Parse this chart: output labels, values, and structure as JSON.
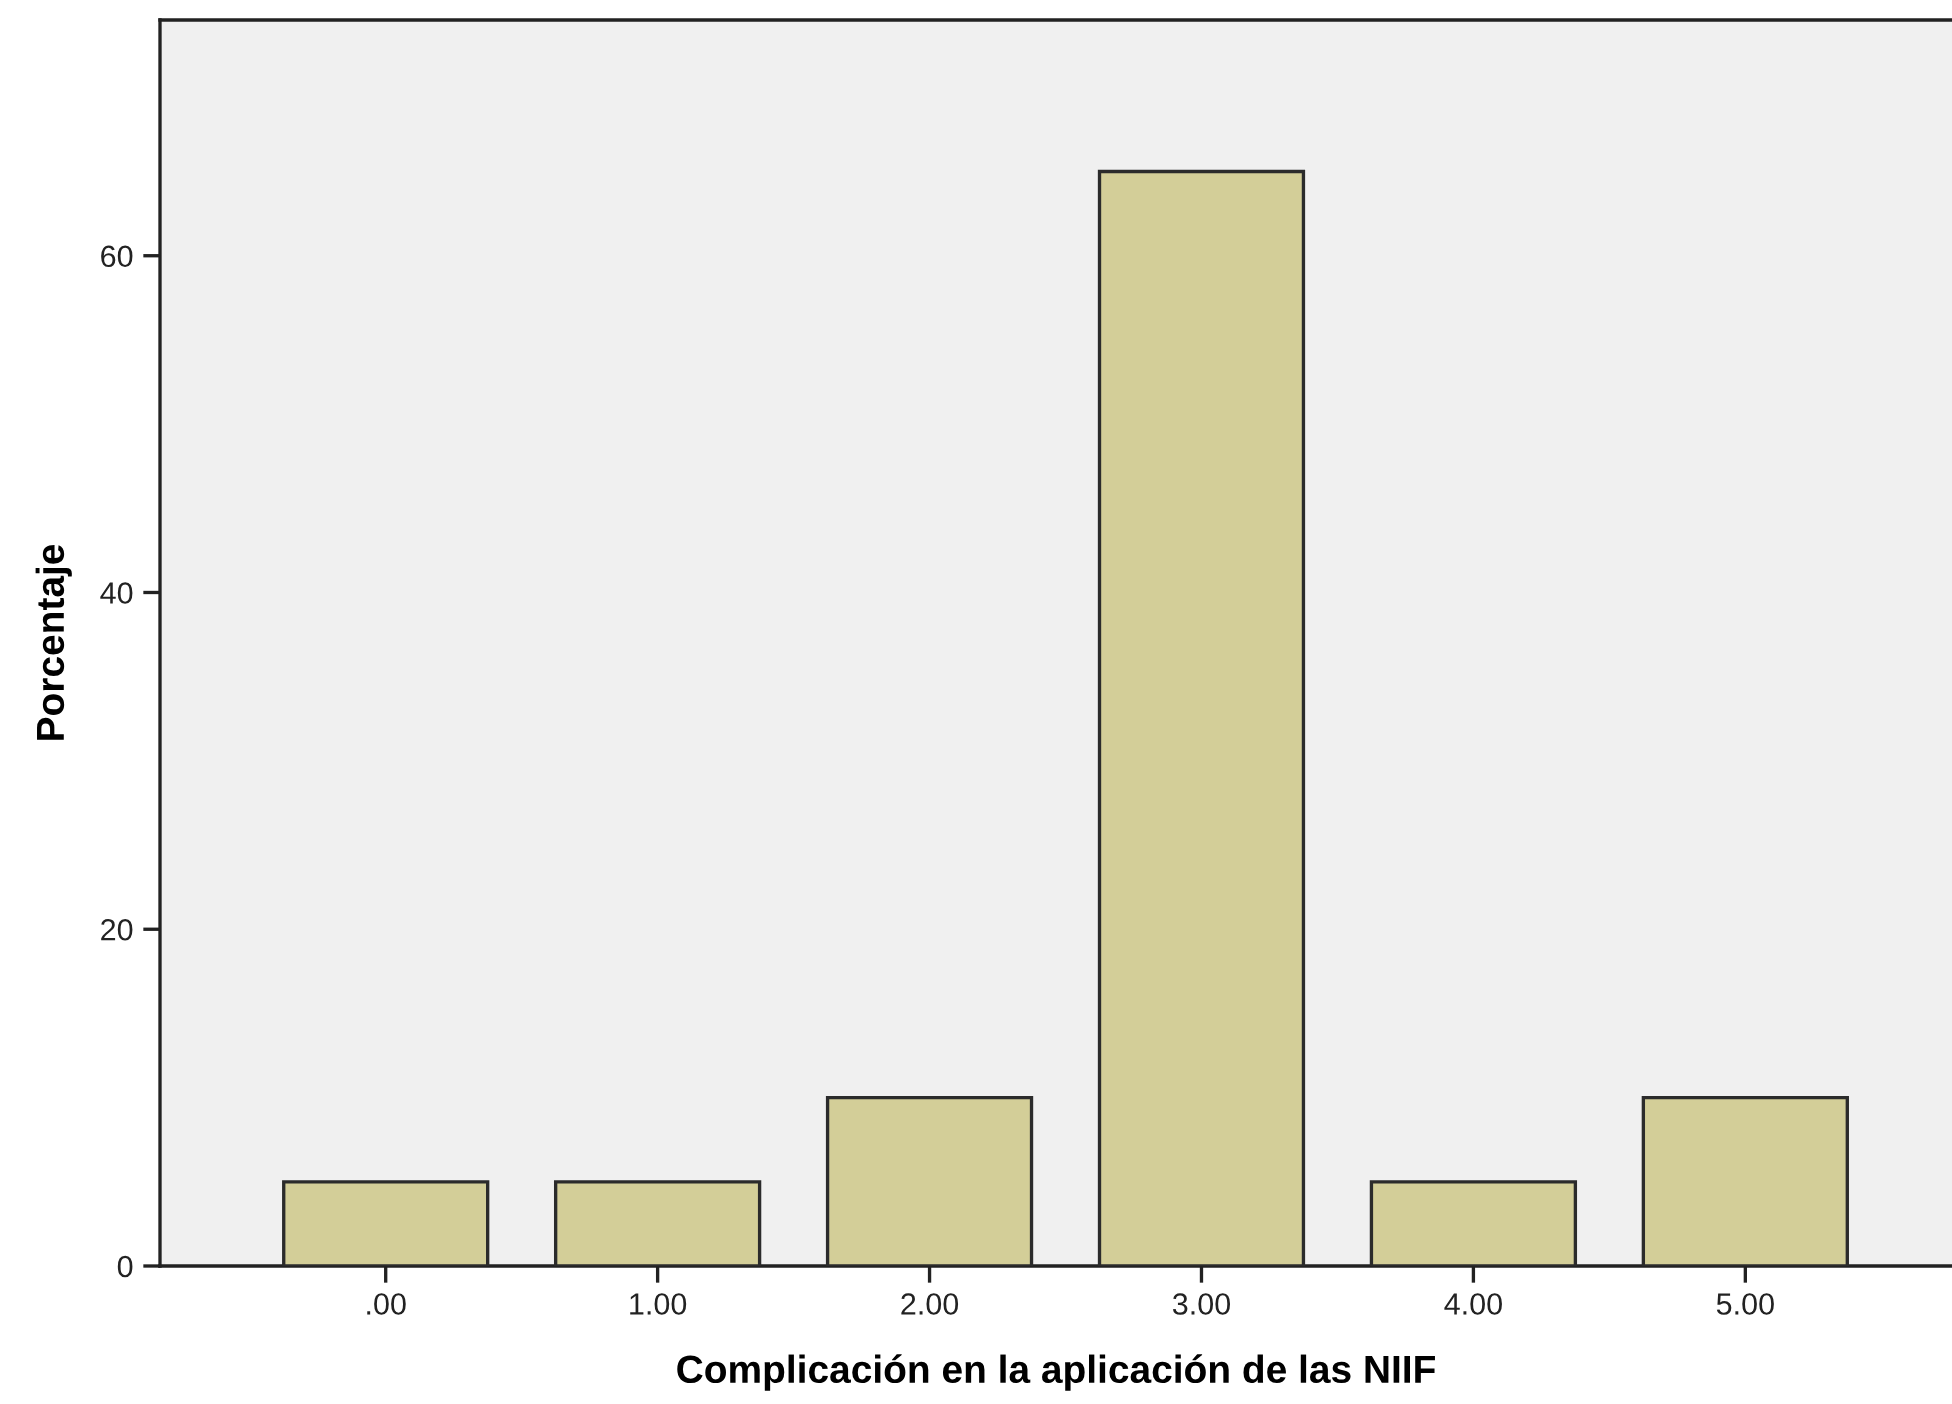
{
  "chart_data": {
    "type": "bar",
    "xlabel": "Complicación en la aplicación de las NIIF",
    "ylabel": "Porcentaje",
    "categories": [
      ".00",
      "1.00",
      "2.00",
      "3.00",
      "4.00",
      "5.00"
    ],
    "values": [
      5,
      5,
      10,
      65,
      5,
      10
    ],
    "color": "#d3ce98",
    "ylim": [
      0,
      74
    ],
    "yticks": [
      0,
      20,
      40,
      60
    ],
    "grid": false,
    "legend": false
  }
}
